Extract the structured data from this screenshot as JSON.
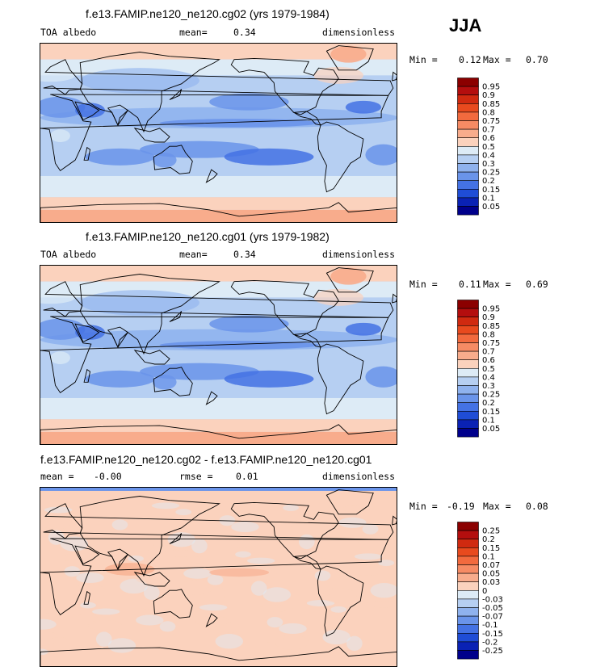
{
  "season": "JJA",
  "panels": [
    {
      "id": "cg02",
      "title": "f.e13.FAMIP.ne120_ne120.cg02 (yrs 1979-1984)",
      "variable": "TOA albedo",
      "stat_label": "mean=",
      "stat_value": "0.34",
      "units": "dimensionless",
      "min_label": "Min =",
      "min_value": "0.12",
      "max_label": "Max =",
      "max_value": "0.70"
    },
    {
      "id": "cg01",
      "title": "f.e13.FAMIP.ne120_ne120.cg01 (yrs 1979-1982)",
      "variable": "TOA albedo",
      "stat_label": "mean=",
      "stat_value": "0.34",
      "units": "dimensionless",
      "min_label": "Min =",
      "min_value": "0.11",
      "max_label": "Max =",
      "max_value": "0.69"
    },
    {
      "id": "diff",
      "title": "f.e13.FAMIP.ne120_ne120.cg02 - f.e13.FAMIP.ne120_ne120.cg01",
      "mean_label": "mean =",
      "mean_value": "-0.00",
      "rmse_label": "rmse =",
      "rmse_value": "0.01",
      "units": "dimensionless",
      "min_label": "Min =",
      "min_value": "-0.19",
      "max_label": "Max =",
      "max_value": "0.08"
    }
  ],
  "chart_data": [
    {
      "type": "heatmap",
      "title": "f.e13.FAMIP.ne120_ne120.cg02 (yrs 1979-1984)",
      "variable": "TOA albedo",
      "units": "dimensionless",
      "mean": 0.34,
      "min": 0.12,
      "max": 0.7,
      "colorbar_levels": [
        "0.95",
        "0.9",
        "0.85",
        "0.8",
        "0.75",
        "0.7",
        "0.6",
        "0.5",
        "0.4",
        "0.3",
        "0.25",
        "0.2",
        "0.15",
        "0.1",
        "0.05"
      ],
      "colorbar_colors": [
        "#8b0000",
        "#b40e0e",
        "#d02a10",
        "#e84a1e",
        "#f26a3e",
        "#f68b64",
        "#f8ac8c",
        "#fbd2bd",
        "#ddebf6",
        "#b6cff2",
        "#8fb2ee",
        "#6a94ea",
        "#4472e4",
        "#1f4dd6",
        "#0a22b4",
        "#00008b"
      ]
    },
    {
      "type": "heatmap",
      "title": "f.e13.FAMIP.ne120_ne120.cg01 (yrs 1979-1982)",
      "variable": "TOA albedo",
      "units": "dimensionless",
      "mean": 0.34,
      "min": 0.11,
      "max": 0.69,
      "colorbar_levels": [
        "0.95",
        "0.9",
        "0.85",
        "0.8",
        "0.75",
        "0.7",
        "0.6",
        "0.5",
        "0.4",
        "0.3",
        "0.25",
        "0.2",
        "0.15",
        "0.1",
        "0.05"
      ],
      "colorbar_colors": [
        "#8b0000",
        "#b40e0e",
        "#d02a10",
        "#e84a1e",
        "#f26a3e",
        "#f68b64",
        "#f8ac8c",
        "#fbd2bd",
        "#ddebf6",
        "#b6cff2",
        "#8fb2ee",
        "#6a94ea",
        "#4472e4",
        "#1f4dd6",
        "#0a22b4",
        "#00008b"
      ]
    },
    {
      "type": "heatmap",
      "title": "f.e13.FAMIP.ne120_ne120.cg02 - f.e13.FAMIP.ne120_ne120.cg01",
      "units": "dimensionless",
      "mean": -0.0,
      "rmse": 0.01,
      "min": -0.19,
      "max": 0.08,
      "colorbar_levels": [
        "0.25",
        "0.2",
        "0.15",
        "0.1",
        "0.07",
        "0.05",
        "0.03",
        "0",
        "-0.03",
        "-0.05",
        "-0.07",
        "-0.1",
        "-0.15",
        "-0.2",
        "-0.25"
      ],
      "colorbar_colors": [
        "#8b0000",
        "#b40e0e",
        "#d02a10",
        "#e84a1e",
        "#f26a3e",
        "#f68b64",
        "#f8ac8c",
        "#fbd2bd",
        "#ddebf6",
        "#b6cff2",
        "#8fb2ee",
        "#6a94ea",
        "#4472e4",
        "#1f4dd6",
        "#0a22b4",
        "#00008b"
      ]
    }
  ]
}
